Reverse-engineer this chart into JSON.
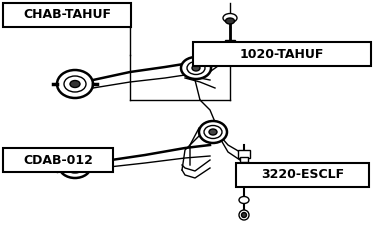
{
  "bg_color": "#ffffff",
  "fig_width": 3.73,
  "fig_height": 2.27,
  "dpi": 100,
  "labels": {
    "CHAB_TAHUF": "CHAB-TAHUF",
    "TAH1020": "1020-TAHUF",
    "CDAB_012": "CDAB-012",
    "ESC3220": "3220-ESCLF"
  },
  "boxes": {
    "CHAB": [
      3,
      3,
      128,
      24
    ],
    "TAH1020": [
      193,
      42,
      178,
      24
    ],
    "CDAB": [
      3,
      148,
      110,
      24
    ],
    "ESC3220": [
      236,
      163,
      133,
      24
    ]
  },
  "lw": 1.0,
  "lw_thick": 1.8
}
